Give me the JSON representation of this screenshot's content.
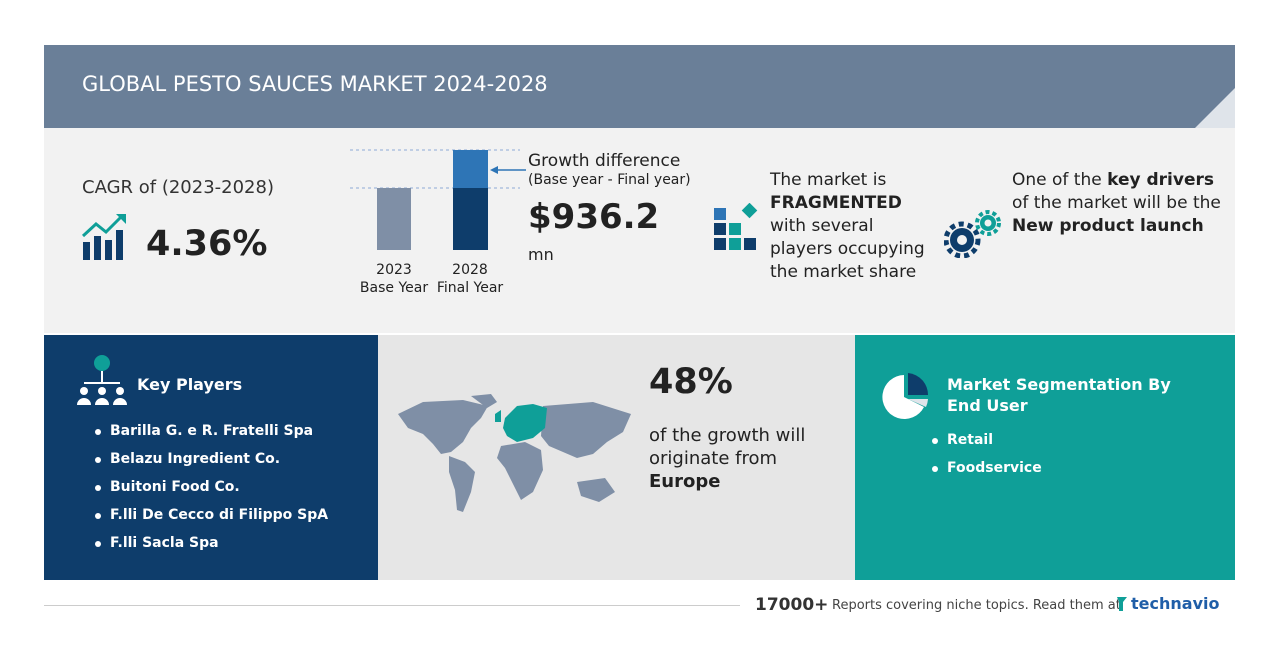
{
  "header": {
    "title": "GLOBAL PESTO SAUCES MARKET 2024-2028"
  },
  "cagr": {
    "label": "CAGR of (2023-2028)",
    "value": "4.36%"
  },
  "growth": {
    "bars": [
      {
        "year": "2023",
        "label": "Base Year"
      },
      {
        "year": "2028",
        "label": "Final Year"
      }
    ],
    "title": "Growth difference",
    "subtitle": "(Base year - Final year)",
    "value": "$936.2",
    "unit": "mn"
  },
  "market": {
    "lines": [
      "The market is",
      "FRAGMENTED",
      "with several",
      "players occupying",
      "the market share"
    ]
  },
  "drivers": {
    "prefix": "One of the",
    "key": "key drivers",
    "line2": "of the market will be the",
    "driver": "New product launch"
  },
  "players": {
    "title": "Key Players",
    "items": [
      "Barilla G. e R. Fratelli Spa",
      "Belazu Ingredient Co.",
      "Buitoni Food Co.",
      "F.lli De Cecco di Filippo SpA",
      "F.lli Sacla Spa"
    ]
  },
  "region": {
    "share": "48%",
    "lines": [
      "of the growth will",
      "originate from"
    ],
    "region": "Europe"
  },
  "segmentation": {
    "title_lines": [
      "Market Segmentation By",
      "End User"
    ],
    "items": [
      "Retail",
      "Foodservice"
    ]
  },
  "footer": {
    "count": "17000+",
    "text": "Reports covering niche topics. Read them at",
    "brand": "technavio"
  }
}
